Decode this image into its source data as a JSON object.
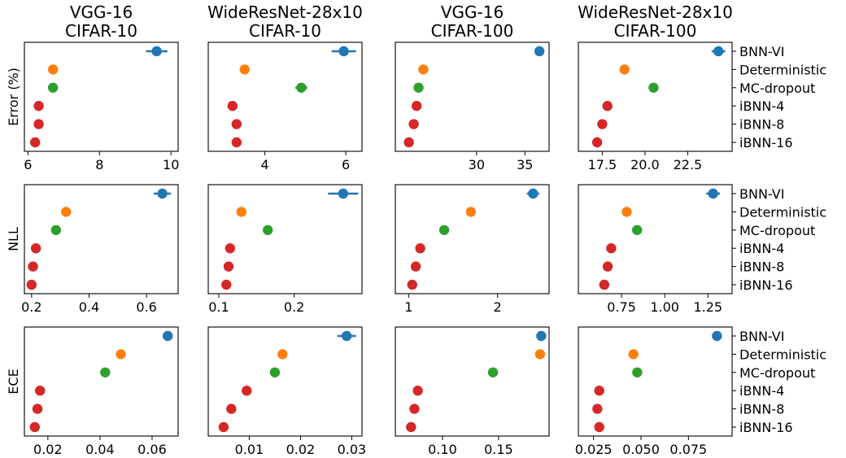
{
  "chart_data": {
    "type": "scatter",
    "layout": "grid",
    "methods": [
      "BNN-VI",
      "Deterministic",
      "MC-dropout",
      "iBNN-4",
      "iBNN-8",
      "iBNN-16"
    ],
    "method_colors": [
      "#1f77b4",
      "#ff7f0e",
      "#2ca02c",
      "#d62728",
      "#d62728",
      "#d62728"
    ],
    "columns": [
      {
        "title_line1": "VGG-16",
        "title_line2": "CIFAR-10"
      },
      {
        "title_line1": "WideResNet-28x10",
        "title_line2": "CIFAR-10"
      },
      {
        "title_line1": "VGG-16",
        "title_line2": "CIFAR-100"
      },
      {
        "title_line1": "WideResNet-28x10",
        "title_line2": "CIFAR-100"
      }
    ],
    "rows": [
      {
        "ylabel": "Error (%)",
        "panels": [
          {
            "xlim": [
              5.9,
              10.2
            ],
            "xticks": [
              6,
              8,
              10
            ],
            "xtick_labels": [
              "6",
              "8",
              "10"
            ],
            "values": [
              9.6,
              6.7,
              6.7,
              6.3,
              6.3,
              6.2
            ],
            "errors": [
              0.3,
              0,
              0,
              0,
              0,
              0
            ]
          },
          {
            "xlim": [
              2.6,
              6.4
            ],
            "xticks": [
              4,
              6
            ],
            "xtick_labels": [
              "4",
              "6"
            ],
            "values": [
              5.95,
              3.5,
              4.9,
              3.2,
              3.3,
              3.3
            ],
            "errors": [
              0.3,
              0,
              0.15,
              0,
              0,
              0
            ]
          },
          {
            "xlim": [
              21.6,
              37.5
            ],
            "xticks": [
              30,
              35
            ],
            "xtick_labels": [
              "30",
              "35"
            ],
            "values": [
              36.5,
              24.5,
              24.0,
              23.8,
              23.5,
              23.0
            ],
            "errors": [
              0,
              0,
              0,
              0,
              0,
              0
            ]
          },
          {
            "xlim": [
              16.1,
              25.1
            ],
            "xticks": [
              17.5,
              20.0,
              22.5
            ],
            "xtick_labels": [
              "17.5",
              "20.0",
              "22.5"
            ],
            "values": [
              24.3,
              18.8,
              20.5,
              17.8,
              17.5,
              17.2
            ],
            "errors": [
              0.4,
              0,
              0,
              0,
              0,
              0
            ]
          }
        ]
      },
      {
        "ylabel": "NLL",
        "panels": [
          {
            "xlim": [
              0.175,
              0.71
            ],
            "xticks": [
              0.2,
              0.4,
              0.6
            ],
            "xtick_labels": [
              "0.2",
              "0.4",
              "0.6"
            ],
            "values": [
              0.655,
              0.32,
              0.285,
              0.215,
              0.205,
              0.2
            ],
            "errors": [
              0.03,
              0,
              0,
              0,
              0,
              0
            ]
          },
          {
            "xlim": [
              0.086,
              0.29
            ],
            "xticks": [
              0.1,
              0.2
            ],
            "xtick_labels": [
              "0.1",
              "0.2"
            ],
            "values": [
              0.265,
              0.13,
              0.165,
              0.115,
              0.113,
              0.11
            ],
            "errors": [
              0.02,
              0,
              0.005,
              0,
              0,
              0
            ]
          },
          {
            "xlim": [
              0.85,
              2.58
            ],
            "xticks": [
              1,
              2
            ],
            "xtick_labels": [
              "1",
              "2"
            ],
            "values": [
              2.4,
              1.7,
              1.4,
              1.13,
              1.08,
              1.04
            ],
            "errors": [
              0.07,
              0,
              0,
              0,
              0,
              0
            ]
          },
          {
            "xlim": [
              0.5,
              1.39
            ],
            "xticks": [
              0.75,
              1.0,
              1.25
            ],
            "xtick_labels": [
              "0.75",
              "1.00",
              "1.25"
            ],
            "values": [
              1.28,
              0.78,
              0.84,
              0.69,
              0.67,
              0.65
            ],
            "errors": [
              0.04,
              0,
              0,
              0,
              0,
              0
            ]
          }
        ]
      },
      {
        "ylabel": "ECE",
        "panels": [
          {
            "xlim": [
              0.011,
              0.07
            ],
            "xticks": [
              0.02,
              0.04,
              0.06
            ],
            "xtick_labels": [
              "0.02",
              "0.04",
              "0.06"
            ],
            "values": [
              0.066,
              0.048,
              0.042,
              0.017,
              0.016,
              0.015
            ],
            "errors": [
              0,
              0,
              0,
              0,
              0,
              0
            ]
          },
          {
            "xlim": [
              0.002,
              0.032
            ],
            "xticks": [
              0.01,
              0.02,
              0.03
            ],
            "xtick_labels": [
              "0.01",
              "0.02",
              "0.03"
            ],
            "values": [
              0.029,
              0.0165,
              0.015,
              0.0095,
              0.0065,
              0.005
            ],
            "errors": [
              0.0018,
              0,
              0,
              0,
              0,
              0.0005
            ]
          },
          {
            "xlim": [
              0.058,
              0.195
            ],
            "xticks": [
              0.1,
              0.15
            ],
            "xtick_labels": [
              "0.10",
              "0.15"
            ],
            "values": [
              0.188,
              0.187,
              0.145,
              0.078,
              0.075,
              0.072
            ],
            "errors": [
              0,
              0,
              0,
              0,
              0,
              0
            ]
          },
          {
            "xlim": [
              0.017,
              0.098
            ],
            "xticks": [
              0.025,
              0.05,
              0.075
            ],
            "xtick_labels": [
              "0.025",
              "0.050",
              "0.075"
            ],
            "values": [
              0.09,
              0.046,
              0.048,
              0.028,
              0.027,
              0.028
            ],
            "errors": [
              0,
              0,
              0,
              0,
              0,
              0
            ]
          }
        ]
      }
    ]
  }
}
